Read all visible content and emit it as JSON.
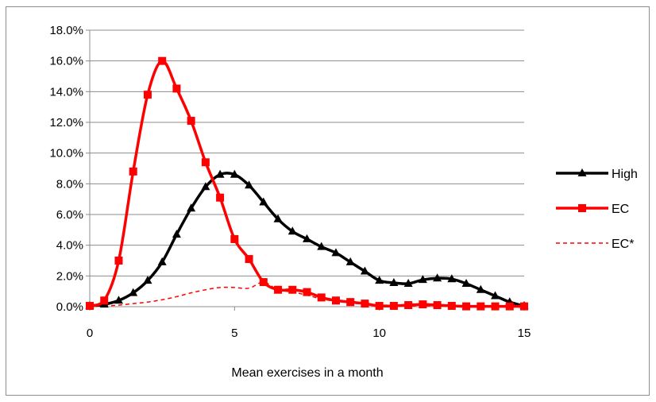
{
  "chart_data": {
    "type": "line",
    "title": "",
    "xlabel": "Mean exercises in a month",
    "ylabel": "",
    "xlim": [
      0,
      15
    ],
    "ylim": [
      0,
      18
    ],
    "x_ticks": [
      0,
      5,
      10,
      15
    ],
    "y_ticks": [
      0,
      2,
      4,
      6,
      8,
      10,
      12,
      14,
      16,
      18
    ],
    "y_tick_labels": [
      "0.0%",
      "2.0%",
      "4.0%",
      "6.0%",
      "8.0%",
      "10.0%",
      "12.0%",
      "14.0%",
      "16.0%",
      "18.0%"
    ],
    "grid": "horizontal",
    "legend_position": "right",
    "series": [
      {
        "name": "High",
        "color": "#000000",
        "marker": "triangle",
        "line": "solid",
        "x": [
          0,
          0.5,
          1,
          1.5,
          2,
          2.5,
          3,
          3.5,
          4,
          4.5,
          5,
          5.5,
          6,
          6.5,
          7,
          7.5,
          8,
          8.5,
          9,
          9.5,
          10,
          10.5,
          11,
          11.5,
          12,
          12.5,
          13,
          13.5,
          14,
          14.5,
          15
        ],
        "y": [
          0.05,
          0.15,
          0.4,
          0.9,
          1.7,
          2.9,
          4.7,
          6.4,
          7.8,
          8.6,
          8.6,
          7.9,
          6.8,
          5.7,
          4.9,
          4.4,
          3.9,
          3.5,
          2.9,
          2.3,
          1.7,
          1.55,
          1.5,
          1.75,
          1.85,
          1.8,
          1.5,
          1.1,
          0.7,
          0.3,
          0.05
        ]
      },
      {
        "name": "EC",
        "color": "#ff0000",
        "marker": "square",
        "line": "solid",
        "x": [
          0,
          0.5,
          1,
          1.5,
          2,
          2.5,
          3,
          3.5,
          4,
          4.5,
          5,
          5.5,
          6,
          6.5,
          7,
          7.5,
          8,
          8.5,
          9,
          9.5,
          10,
          10.5,
          11,
          11.5,
          12,
          12.5,
          13,
          13.5,
          14,
          14.5,
          15
        ],
        "y": [
          0.05,
          0.4,
          3.0,
          8.8,
          13.8,
          16.0,
          14.2,
          12.1,
          9.4,
          7.1,
          4.4,
          3.1,
          1.6,
          1.1,
          1.1,
          0.95,
          0.6,
          0.4,
          0.3,
          0.2,
          0.05,
          0.05,
          0.1,
          0.15,
          0.1,
          0.05,
          0.02,
          0.02,
          0.02,
          0.02,
          0.02
        ]
      },
      {
        "name": "EC*",
        "color": "#ff0000",
        "marker": "none",
        "line": "dashed",
        "x": [
          0,
          0.5,
          1,
          1.5,
          2,
          2.5,
          3,
          3.5,
          4,
          4.5,
          5,
          5.5,
          6,
          6.5,
          7,
          7.5,
          8,
          8.5,
          9,
          9.5,
          10,
          10.5,
          11,
          11.5,
          12,
          12.5,
          13,
          13.5,
          14,
          14.5,
          15
        ],
        "y": [
          0.0,
          0.05,
          0.1,
          0.2,
          0.3,
          0.45,
          0.65,
          0.9,
          1.1,
          1.25,
          1.25,
          1.2,
          1.6,
          1.1,
          0.95,
          0.75,
          0.5,
          0.35,
          0.25,
          0.15,
          0.1,
          0.1,
          0.05,
          0.05,
          0.05,
          0.03,
          0.02,
          0.02,
          0.01,
          0.01,
          0.0
        ]
      }
    ]
  }
}
